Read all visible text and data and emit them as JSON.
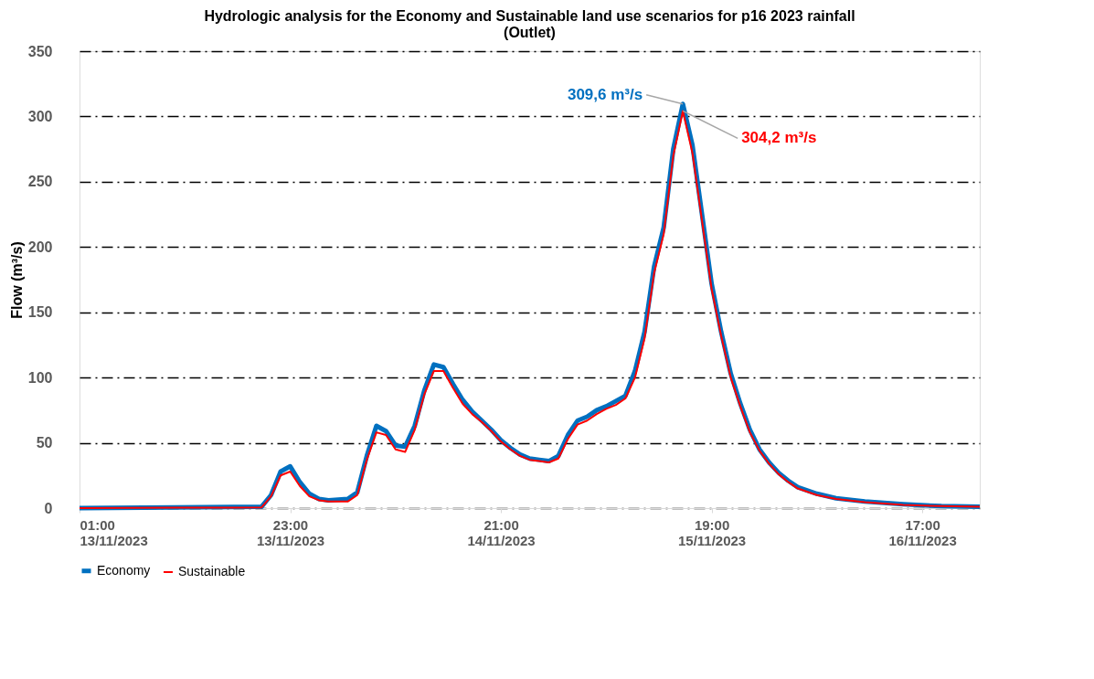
{
  "chart_data": {
    "type": "line",
    "title": "Hydrologic analysis for the Economy and Sustainable land use scenarios for p16 2023 rainfall\n(Outlet)",
    "ylabel": "Flow (m³/s)",
    "x": [
      "2023-11-13T01:00",
      "2023-11-13T11:00",
      "2023-11-13T20:00",
      "2023-11-13T21:00",
      "2023-11-13T22:00",
      "2023-11-13T23:00",
      "2023-11-14T00:00",
      "2023-11-14T01:00",
      "2023-11-14T02:00",
      "2023-11-14T03:00",
      "2023-11-14T05:00",
      "2023-11-14T06:00",
      "2023-11-14T07:00",
      "2023-11-14T08:00",
      "2023-11-14T09:00",
      "2023-11-14T10:00",
      "2023-11-14T11:00",
      "2023-11-14T12:00",
      "2023-11-14T13:00",
      "2023-11-14T14:00",
      "2023-11-14T15:00",
      "2023-11-14T16:00",
      "2023-11-14T17:00",
      "2023-11-14T18:00",
      "2023-11-14T19:00",
      "2023-11-14T20:00",
      "2023-11-14T21:00",
      "2023-11-14T22:00",
      "2023-11-14T23:00",
      "2023-11-15T00:00",
      "2023-11-15T01:00",
      "2023-11-15T02:00",
      "2023-11-15T03:00",
      "2023-11-15T04:00",
      "2023-11-15T05:00",
      "2023-11-15T06:00",
      "2023-11-15T07:00",
      "2023-11-15T08:00",
      "2023-11-15T09:00",
      "2023-11-15T10:00",
      "2023-11-15T11:00",
      "2023-11-15T12:00",
      "2023-11-15T13:00",
      "2023-11-15T14:00",
      "2023-11-15T15:00",
      "2023-11-15T16:00",
      "2023-11-15T17:00",
      "2023-11-15T18:00",
      "2023-11-15T19:00",
      "2023-11-15T20:00",
      "2023-11-15T21:00",
      "2023-11-15T22:00",
      "2023-11-15T23:00",
      "2023-11-16T00:00",
      "2023-11-16T01:00",
      "2023-11-16T02:00",
      "2023-11-16T03:00",
      "2023-11-16T04:00",
      "2023-11-16T06:00",
      "2023-11-16T08:00",
      "2023-11-16T11:00",
      "2023-11-16T15:00",
      "2023-11-16T19:00",
      "2023-11-16T23:00"
    ],
    "series": [
      {
        "name": "Economy",
        "color": "#0070c0",
        "values": [
          0,
          0.5,
          1,
          10,
          28,
          32,
          20,
          11,
          7,
          6,
          7,
          12,
          40,
          63,
          59,
          48,
          47,
          63,
          90,
          110,
          108,
          95,
          83,
          74,
          67,
          60,
          52,
          46,
          41,
          38,
          37,
          36,
          40,
          56,
          67,
          70,
          75,
          78,
          82,
          86,
          105,
          135,
          185,
          215,
          275,
          309.6,
          278,
          225,
          172,
          135,
          103,
          80,
          60,
          45,
          35,
          27,
          21,
          16,
          11,
          7.5,
          5,
          3,
          1.5,
          1
        ]
      },
      {
        "name": "Sustainable",
        "color": "#ff0000",
        "values": [
          0,
          0.3,
          0.5,
          9,
          25,
          28,
          17,
          9,
          6,
          5,
          5,
          10,
          37,
          58,
          56,
          45,
          43,
          60,
          87,
          105,
          105,
          92,
          80,
          72,
          66,
          59,
          51,
          45,
          40,
          37,
          36,
          35,
          38,
          53,
          64,
          67,
          72,
          76,
          79,
          84,
          100,
          130,
          180,
          210,
          270,
          304.2,
          272,
          220,
          168,
          132,
          100,
          78,
          58,
          44,
          34,
          26,
          20,
          15,
          10,
          7,
          4.5,
          2.5,
          1.5,
          1
        ]
      }
    ],
    "xlim": [
      "2023-11-13T01:00",
      "2023-11-16T23:00"
    ],
    "xticks": [
      {
        "value": "2023-11-13T01:00",
        "label": "01:00\n13/11/2023"
      },
      {
        "value": "2023-11-13T23:00",
        "label": "23:00\n13/11/2023"
      },
      {
        "value": "2023-11-14T21:00",
        "label": "21:00\n14/11/2023"
      },
      {
        "value": "2023-11-15T19:00",
        "label": "19:00\n15/11/2023"
      },
      {
        "value": "2023-11-16T17:00",
        "label": "17:00\n16/11/2023"
      }
    ],
    "ylim": [
      0,
      350
    ],
    "yticks": [
      0,
      50,
      100,
      150,
      200,
      250,
      300,
      350
    ],
    "annotations": [
      {
        "text": "309,6 m³/s",
        "x": "2023-11-15T16:00",
        "y": 309.6
      },
      {
        "text": "304,2 m³/s",
        "x": "2023-11-15T16:00",
        "y": 304.2
      }
    ],
    "grid": "y",
    "legend": "bottom",
    "line_style": "solid",
    "marker": "none"
  }
}
